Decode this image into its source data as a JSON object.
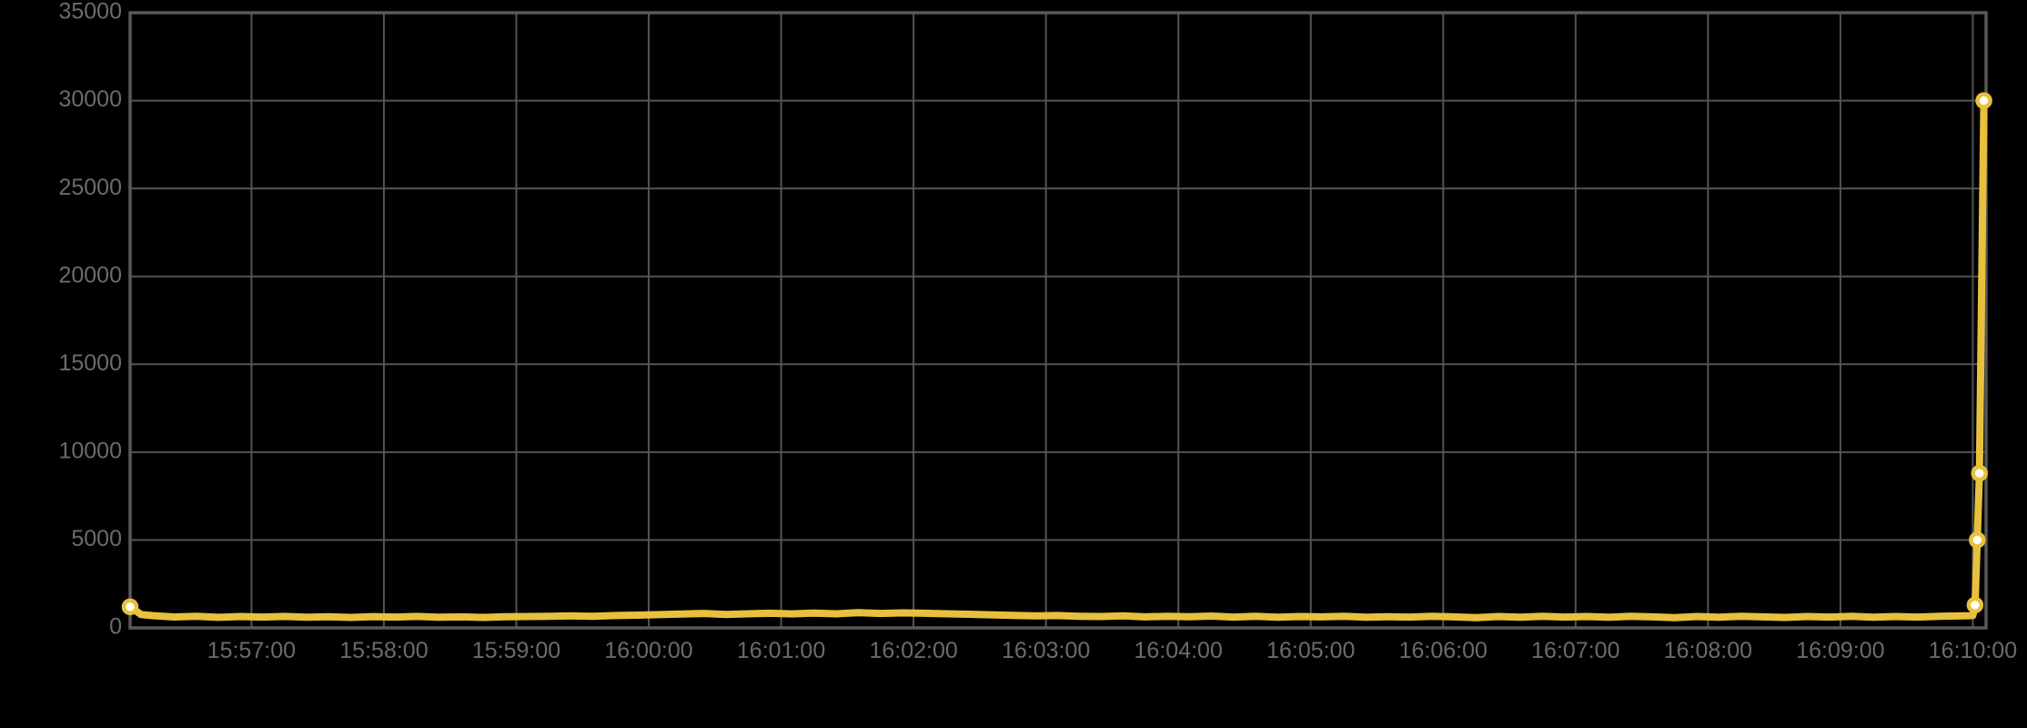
{
  "chart_data": {
    "type": "line",
    "title": "",
    "xlabel": "",
    "ylabel": "",
    "grid": true,
    "legend": "none",
    "background_color": "#000000",
    "grid_color": "#545454",
    "border_color": "#59595B",
    "tick_text_color": "#6B6B6D",
    "ylim": [
      0,
      35000
    ],
    "y_ticks": [
      0,
      5000,
      10000,
      15000,
      20000,
      25000,
      30000,
      35000
    ],
    "y_tick_labels": [
      "0",
      "5000",
      "10000",
      "15000",
      "20000",
      "25000",
      "30000",
      "35000"
    ],
    "time_base": "15:56:00",
    "x_domain_seconds": [
      5,
      846
    ],
    "x_tick_seconds": [
      60,
      120,
      180,
      240,
      300,
      360,
      420,
      480,
      540,
      600,
      660,
      720,
      780,
      840
    ],
    "x_tick_labels": [
      "15:57:00",
      "15:58:00",
      "15:59:00",
      "16:00:00",
      "16:01:00",
      "16:02:00",
      "16:03:00",
      "16:04:00",
      "16:05:00",
      "16:06:00",
      "16:07:00",
      "16:08:00",
      "16:09:00",
      "16:10:00"
    ],
    "series": [
      {
        "name": "value",
        "color": "#E7C13D",
        "marker_fill": "#FFFEF2",
        "line_width": 8,
        "points": [
          [
            5,
            1200
          ],
          [
            10,
            760
          ],
          [
            15,
            700
          ],
          [
            25,
            620
          ],
          [
            35,
            655
          ],
          [
            45,
            600
          ],
          [
            55,
            645
          ],
          [
            65,
            615
          ],
          [
            75,
            650
          ],
          [
            85,
            605
          ],
          [
            95,
            635
          ],
          [
            105,
            595
          ],
          [
            115,
            640
          ],
          [
            125,
            615
          ],
          [
            135,
            650
          ],
          [
            145,
            605
          ],
          [
            155,
            625
          ],
          [
            165,
            595
          ],
          [
            175,
            635
          ],
          [
            185,
            645
          ],
          [
            195,
            665
          ],
          [
            205,
            685
          ],
          [
            215,
            655
          ],
          [
            225,
            705
          ],
          [
            235,
            725
          ],
          [
            245,
            755
          ],
          [
            255,
            785
          ],
          [
            265,
            825
          ],
          [
            275,
            765
          ],
          [
            285,
            805
          ],
          [
            295,
            835
          ],
          [
            305,
            795
          ],
          [
            315,
            845
          ],
          [
            325,
            805
          ],
          [
            335,
            865
          ],
          [
            345,
            825
          ],
          [
            355,
            855
          ],
          [
            365,
            835
          ],
          [
            375,
            805
          ],
          [
            385,
            775
          ],
          [
            395,
            745
          ],
          [
            405,
            715
          ],
          [
            415,
            685
          ],
          [
            425,
            705
          ],
          [
            435,
            665
          ],
          [
            445,
            645
          ],
          [
            455,
            685
          ],
          [
            465,
            625
          ],
          [
            475,
            665
          ],
          [
            485,
            635
          ],
          [
            495,
            675
          ],
          [
            505,
            615
          ],
          [
            515,
            655
          ],
          [
            525,
            605
          ],
          [
            535,
            645
          ],
          [
            545,
            625
          ],
          [
            555,
            665
          ],
          [
            565,
            605
          ],
          [
            575,
            635
          ],
          [
            585,
            615
          ],
          [
            595,
            655
          ],
          [
            605,
            625
          ],
          [
            615,
            585
          ],
          [
            625,
            645
          ],
          [
            635,
            605
          ],
          [
            645,
            665
          ],
          [
            655,
            615
          ],
          [
            665,
            645
          ],
          [
            675,
            605
          ],
          [
            685,
            655
          ],
          [
            695,
            625
          ],
          [
            705,
            585
          ],
          [
            715,
            645
          ],
          [
            725,
            605
          ],
          [
            735,
            665
          ],
          [
            745,
            625
          ],
          [
            755,
            595
          ],
          [
            765,
            645
          ],
          [
            775,
            615
          ],
          [
            785,
            655
          ],
          [
            795,
            605
          ],
          [
            805,
            645
          ],
          [
            815,
            615
          ],
          [
            825,
            655
          ],
          [
            835,
            685
          ],
          [
            840,
            705
          ],
          [
            841,
            1300
          ],
          [
            842,
            5000
          ],
          [
            843,
            8800
          ],
          [
            845,
            30000
          ]
        ],
        "marker_indices": [
          0,
          86,
          87,
          88,
          89
        ]
      }
    ],
    "notable_values": {
      "start_point": 1200,
      "baseline_approx": 620,
      "hump_peak_approx": 860,
      "hump_time": "16:01:30",
      "terminal_spike": [
        1300,
        5000,
        8800,
        30000
      ],
      "terminal_spike_time": "16:10:00"
    }
  }
}
